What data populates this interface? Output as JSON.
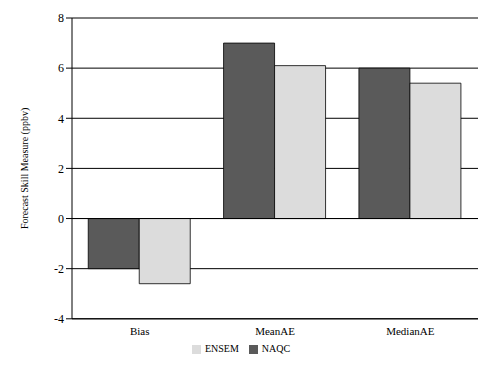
{
  "chart_data": {
    "type": "bar",
    "y_label": "Forecast Skill Measure (ppbv)",
    "categories": [
      "Bias",
      "MeanAE",
      "MedianAE"
    ],
    "series": [
      {
        "name": "NAQC",
        "color": "#5a5a5a",
        "values": [
          -2,
          7,
          6
        ]
      },
      {
        "name": "ENSEM",
        "color": "#dcdcdc",
        "values": [
          -2.6,
          6.1,
          5.4
        ]
      }
    ],
    "ylim": [
      -4,
      8
    ],
    "yticks": [
      -4,
      -2,
      0,
      2,
      4,
      6,
      8
    ],
    "grid": true,
    "legend": "bottom"
  }
}
